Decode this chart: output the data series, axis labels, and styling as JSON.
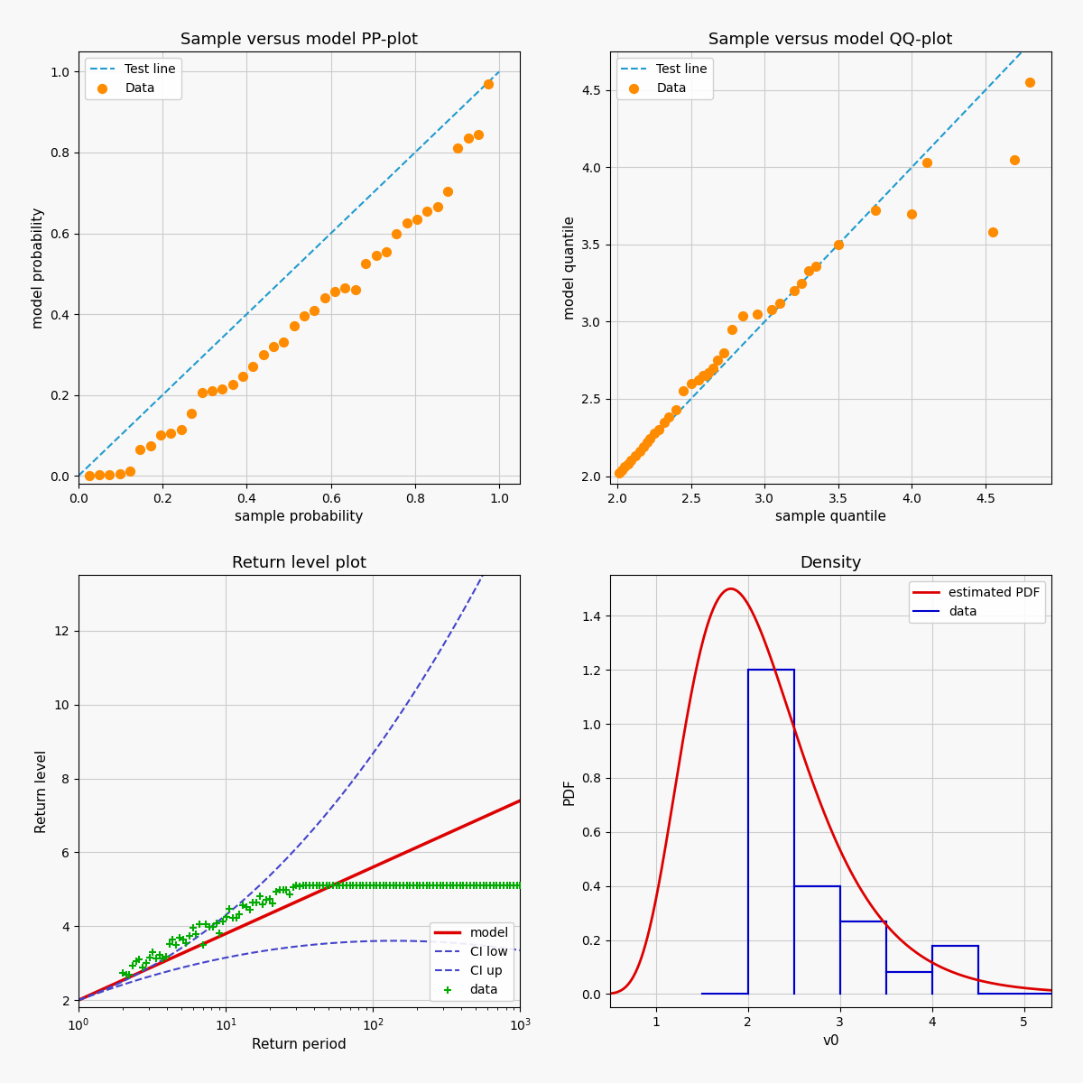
{
  "pp_title": "Sample versus model PP-plot",
  "pp_xlabel": "sample probability",
  "pp_ylabel": "model probability",
  "pp_line_color": "#1f9bcf",
  "pp_data_color": "#ff8c00",
  "qq_title": "Sample versus model QQ-plot",
  "qq_xlabel": "sample quantile",
  "qq_ylabel": "model quantile",
  "qq_line_color": "#1f9bcf",
  "qq_data_color": "#ff8c00",
  "qq_xlim": [
    2.0,
    4.9
  ],
  "qq_ylim": [
    2.0,
    4.75
  ],
  "rl_title": "Return level plot",
  "rl_xlabel": "Return period",
  "rl_ylabel": "Return level",
  "rl_model_color": "#dd0000",
  "rl_ci_low_color": "#4444cc",
  "rl_ci_up_color": "#4444cc",
  "rl_data_color": "#00aa00",
  "rl_ylim": [
    1.8,
    13.5
  ],
  "density_title": "Density",
  "density_xlabel": "v0",
  "density_ylabel": "PDF",
  "density_pdf_color": "#dd0000",
  "density_hist_color": "#0000cc",
  "density_xlim": [
    0.5,
    5.3
  ],
  "density_ylim": [
    -0.05,
    1.55
  ],
  "background_color": "#f8f8f8",
  "grid_color": "#cccccc"
}
